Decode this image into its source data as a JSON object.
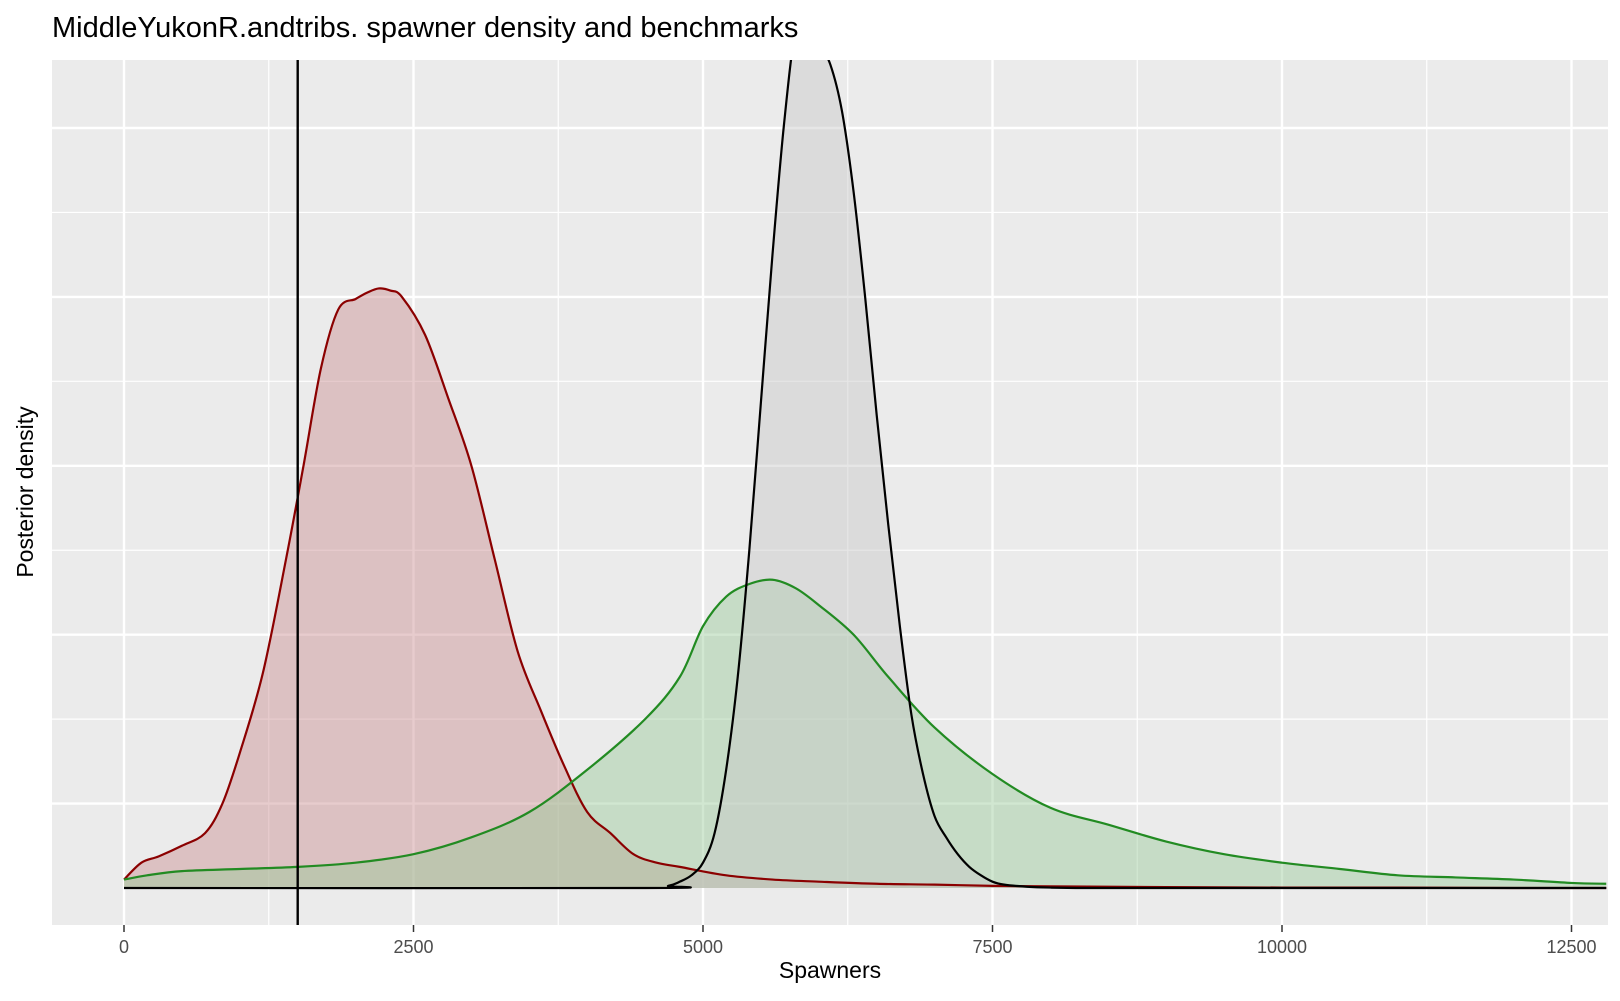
{
  "chart_data": {
    "type": "area",
    "title": "MiddleYukonR.andtribs. spawner density and benchmarks",
    "xlabel": "Spawners",
    "ylabel": "Posterior density",
    "xlim": [
      -3000,
      12800
    ],
    "ylim": [
      -0.0005,
      0.0202
    ],
    "x_ticks": [
      0,
      2500,
      5000,
      7500,
      10000,
      12500
    ],
    "x_tick_labels": [
      "0",
      "2500",
      "5000",
      "7500",
      "10000",
      "12500"
    ],
    "y_major_gridlines": [
      0.002,
      0.006,
      0.01,
      0.014,
      0.018
    ],
    "y_minor_gridlines": [
      0.004,
      0.008,
      0.012,
      0.016
    ],
    "x_minor_gridlines": [
      1250,
      3750,
      6250,
      8750,
      11250
    ],
    "y_tick_labels_shown": false,
    "grid": true,
    "legend": "none",
    "benchmark_line": {
      "x": 1500,
      "color": "#000000"
    },
    "series": [
      {
        "line_color": "#8b0000",
        "fill_color": "#c98e91",
        "x": [
          0,
          150,
          300,
          500,
          700,
          850,
          1000,
          1200,
          1400,
          1550,
          1700,
          1850,
          2000,
          2100,
          2200,
          2300,
          2400,
          2600,
          2800,
          3000,
          3200,
          3400,
          3600,
          3800,
          4000,
          4200,
          4400,
          4600,
          4800,
          5200,
          5600,
          6000,
          6500,
          7000,
          7500,
          8000,
          9000,
          10000,
          11000,
          12000,
          12800
        ],
        "y": [
          0.0002,
          0.0006,
          0.00075,
          0.001,
          0.0013,
          0.002,
          0.0032,
          0.0051,
          0.0078,
          0.01,
          0.0123,
          0.0137,
          0.01395,
          0.0141,
          0.0142,
          0.01415,
          0.014,
          0.0131,
          0.0116,
          0.01,
          0.0078,
          0.0056,
          0.0042,
          0.0029,
          0.0018,
          0.0013,
          0.0008,
          0.0006,
          0.0005,
          0.0003,
          0.0002,
          0.00015,
          0.0001,
          8e-05,
          5e-05,
          4e-05,
          2e-05,
          1e-05,
          1e-05,
          0.0,
          0.0
        ]
      },
      {
        "line_color": "#228b22",
        "fill_color": "#98c998",
        "x": [
          0,
          200,
          500,
          1000,
          1500,
          2000,
          2500,
          3000,
          3500,
          4000,
          4500,
          4800,
          5000,
          5200,
          5400,
          5600,
          5800,
          6000,
          6300,
          6600,
          7000,
          7500,
          8000,
          8500,
          9000,
          9500,
          10000,
          10500,
          11000,
          11500,
          12000,
          12500,
          12800
        ],
        "y": [
          0.0002,
          0.0003,
          0.0004,
          0.00045,
          0.0005,
          0.0006,
          0.0008,
          0.0012,
          0.0018,
          0.0028,
          0.004,
          0.005,
          0.0062,
          0.0069,
          0.0072,
          0.0073,
          0.0071,
          0.0067,
          0.006,
          0.005,
          0.0038,
          0.0027,
          0.0019,
          0.0015,
          0.0011,
          0.0008,
          0.0006,
          0.00045,
          0.0003,
          0.00025,
          0.0002,
          0.00012,
          0.0001
        ]
      },
      {
        "line_color": "#000000",
        "fill_color": "#c8c8c8",
        "x": [
          0,
          4500,
          4700,
          4800,
          4900,
          5000,
          5100,
          5200,
          5300,
          5400,
          5500,
          5600,
          5700,
          5800,
          5900,
          6000,
          6100,
          6200,
          6300,
          6400,
          6500,
          6600,
          6700,
          6800,
          6900,
          7000,
          7100,
          7200,
          7300,
          7400,
          7500,
          7600,
          7800,
          8000,
          8300,
          9000,
          12800
        ],
        "y": [
          0.0,
          0.0,
          5e-05,
          0.00015,
          0.0003,
          0.0006,
          0.0013,
          0.0028,
          0.005,
          0.008,
          0.0115,
          0.015,
          0.0181,
          0.0203,
          0.0204,
          0.02,
          0.0195,
          0.0184,
          0.0165,
          0.014,
          0.0112,
          0.0086,
          0.0062,
          0.0041,
          0.0027,
          0.0017,
          0.0012,
          0.0008,
          0.0005,
          0.0003,
          0.00015,
          8e-05,
          3e-05,
          1e-05,
          0.0,
          0.0,
          0.0
        ]
      }
    ]
  }
}
